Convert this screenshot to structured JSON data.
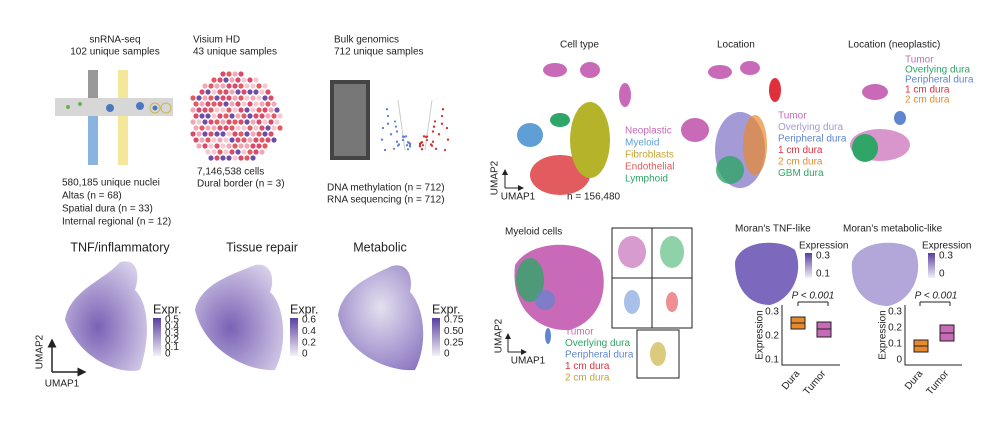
{
  "panels": {
    "snrna": {
      "title": "snRNA-seq",
      "subtitle": "102 unique samples",
      "lines": [
        "580,185 unique nuclei",
        "Altas (n = 68)",
        "Spatial dura (n = 33)",
        "Internal regional (n = 12)"
      ]
    },
    "visium": {
      "title": "Visium HD",
      "subtitle": "43 unique samples",
      "lines": [
        "7,146,538 cells",
        "Dural border (n = 3)"
      ]
    },
    "bulk": {
      "title": "Bulk genomics",
      "subtitle": "712 unique samples",
      "lines": [
        "DNA methylation (n = 712)",
        "RNA sequencing (n = 712)"
      ]
    },
    "axes": {
      "x": "UMAP1",
      "y": "UMAP2"
    },
    "programs": [
      {
        "title": "TNF/inflammatory",
        "legend_title": "Expr.",
        "ticks": [
          "0.5",
          "0.4",
          "0.3",
          "0.2",
          "0.1",
          "0"
        ]
      },
      {
        "title": "Tissue repair",
        "legend_title": "Expr.",
        "ticks": [
          "0.6",
          "0.4",
          "0.2",
          "0"
        ]
      },
      {
        "title": "Metabolic",
        "legend_title": "Expr.",
        "ticks": [
          "0.75",
          "0.50",
          "0.25",
          "0"
        ]
      }
    ],
    "cell_type": {
      "title": "Cell type",
      "n": "n = 156,480",
      "legend": [
        {
          "label": "Neoplastic",
          "color": "#c86ab8"
        },
        {
          "label": "Myeloid",
          "color": "#5f9fd6"
        },
        {
          "label": "Fibroblasts",
          "color": "#c6a33a"
        },
        {
          "label": "Endothelial",
          "color": "#e25b5e"
        },
        {
          "label": "Lymphoid",
          "color": "#2fa567"
        }
      ]
    },
    "location": {
      "title": "Location",
      "legend": [
        {
          "label": "Tumor",
          "color": "#c86ab8"
        },
        {
          "label": "Overlying dura",
          "color": "#a39ad6"
        },
        {
          "label": "Peripheral dura",
          "color": "#5f86cf"
        },
        {
          "label": "1 cm dura",
          "color": "#e0303c"
        },
        {
          "label": "2 cm dura",
          "color": "#e8892c"
        },
        {
          "label": "GBM dura",
          "color": "#2fa567"
        }
      ]
    },
    "location_neo": {
      "title": "Location (neoplastic)",
      "legend": [
        {
          "label": "Tumor",
          "color": "#c86ab8"
        },
        {
          "label": "Overlying dura",
          "color": "#2fa567"
        },
        {
          "label": "Peripheral dura",
          "color": "#5f86cf"
        },
        {
          "label": "1 cm dura",
          "color": "#e0303c"
        },
        {
          "label": "2 cm dura",
          "color": "#e8892c"
        }
      ]
    },
    "myeloid": {
      "title": "Myeloid cells",
      "legend": [
        {
          "label": "Tumor",
          "color": "#c86ab8"
        },
        {
          "label": "Overlying dura",
          "color": "#2fa567"
        },
        {
          "label": "Peripheral dura",
          "color": "#5f86cf"
        },
        {
          "label": "1 cm dura",
          "color": "#e0303c"
        },
        {
          "label": "2 cm dura",
          "color": "#c6a33a"
        }
      ]
    },
    "morans": [
      {
        "title": "Moran's TNF-like",
        "legend_title": "Expression",
        "ticks": [
          "0.3",
          "0.1"
        ],
        "p": "P < 0.001",
        "y_label": "Expression",
        "y_ticks": [
          "0.3",
          "0.2",
          "0.1"
        ],
        "groups": [
          "Dura",
          "Tumor"
        ]
      },
      {
        "title": "Moran's metabolic-like",
        "legend_title": "Expression",
        "ticks": [
          "0.3",
          "0"
        ],
        "p": "P < 0.001",
        "y_label": "Expression",
        "y_ticks": [
          "0.3",
          "0.2",
          "0.1",
          "0"
        ],
        "groups": [
          "Dura",
          "Tumor"
        ]
      }
    ]
  }
}
